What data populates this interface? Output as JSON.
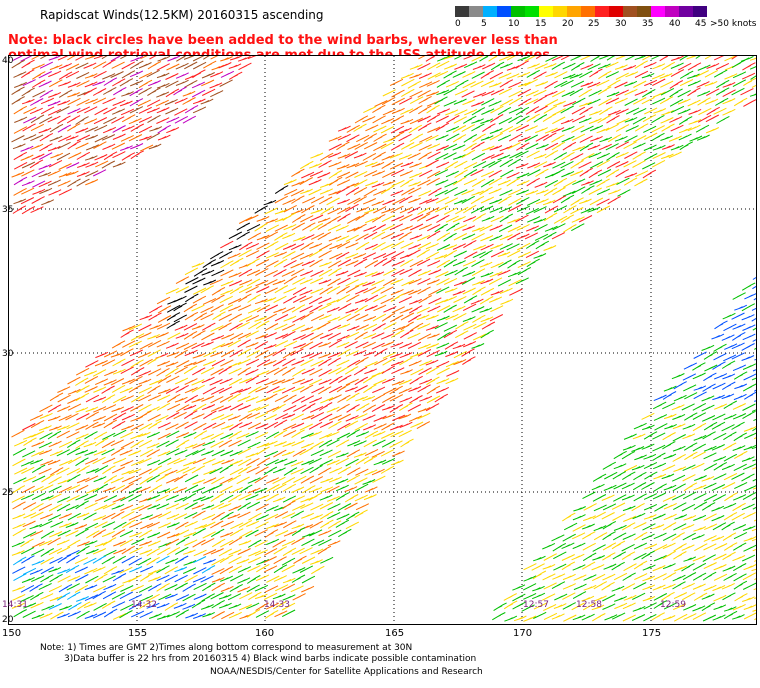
{
  "title": "Rapidscat Winds(12.5KM) 20160315 ascending",
  "note": "Note: black circles have been added to the wind barbs, wherever less than optimal wind retrieval conditions are met due to the ISS attitude changes.",
  "legend": {
    "labels": [
      "0",
      "5",
      "10",
      "15",
      "20",
      "25",
      "30",
      "35",
      "40",
      "45",
      ">50 knots"
    ],
    "colors": [
      "#3a3a3a",
      "#8a8a8a",
      "#00b0ff",
      "#0050ff",
      "#00c000",
      "#00e000",
      "#ffff00",
      "#ffd700",
      "#ffa500",
      "#ff7000",
      "#ff2020",
      "#e00000",
      "#a05020",
      "#805010",
      "#ff00ff",
      "#c000c0",
      "#7000a0",
      "#400080"
    ]
  },
  "map": {
    "lat_labels": [
      "40",
      "35",
      "30",
      "25",
      "20"
    ],
    "lon_labels": [
      "150",
      "155",
      "160",
      "165",
      "170",
      "175"
    ],
    "time_labels": [
      "14:31",
      "14:32",
      "14:33",
      "12:57",
      "12:58",
      "12:59"
    ]
  },
  "footer": {
    "line1": "Note: 1) Times are GMT 2)Times along bottom correspond to measurement at 30N",
    "line2": "3)Data buffer is 22 hrs from 20160315 4) Black wind barbs indicate possible contamination",
    "credit": "NOAA/NESDIS/Center for Satellite Applications and Research"
  }
}
